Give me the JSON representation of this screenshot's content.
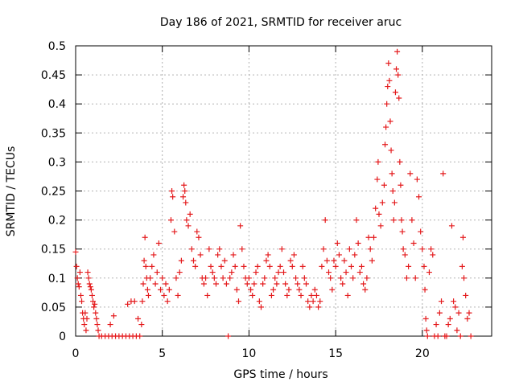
{
  "chart_data": {
    "type": "scatter",
    "title": "Day 186 of 2021, SRMTID for receiver aruc",
    "xlabel": "GPS time / hours",
    "ylabel": "SRMTID / TECUs",
    "xlim": [
      0,
      24
    ],
    "ylim": [
      0,
      0.5
    ],
    "x_ticks": [
      0,
      5,
      10,
      15,
      20
    ],
    "x_tick_labels": [
      "0",
      "5",
      "10",
      "15",
      "20"
    ],
    "y_ticks": [
      0,
      0.05,
      0.1,
      0.15,
      0.2,
      0.25,
      0.3,
      0.35,
      0.4,
      0.45,
      0.5
    ],
    "y_tick_labels": [
      "0",
      "0.05",
      "0.1",
      "0.15",
      "0.2",
      "0.25",
      "0.3",
      "0.35",
      "0.4",
      "0.45",
      "0.5"
    ],
    "grid": true,
    "marker": "+",
    "series": [
      {
        "name": "SRMTID",
        "color": "#e41a1c",
        "points": [
          [
            0.0,
            0.145
          ],
          [
            0.05,
            0.12
          ],
          [
            0.1,
            0.1
          ],
          [
            0.15,
            0.09
          ],
          [
            0.2,
            0.085
          ],
          [
            0.25,
            0.11
          ],
          [
            0.3,
            0.07
          ],
          [
            0.35,
            0.06
          ],
          [
            0.4,
            0.04
          ],
          [
            0.45,
            0.03
          ],
          [
            0.5,
            0.02
          ],
          [
            0.55,
            0.04
          ],
          [
            0.6,
            0.01
          ],
          [
            0.65,
            0.03
          ],
          [
            0.7,
            0.11
          ],
          [
            0.75,
            0.1
          ],
          [
            0.8,
            0.09
          ],
          [
            0.85,
            0.085
          ],
          [
            0.9,
            0.08
          ],
          [
            0.95,
            0.07
          ],
          [
            1.0,
            0.06
          ],
          [
            1.05,
            0.05
          ],
          [
            1.1,
            0.055
          ],
          [
            1.15,
            0.04
          ],
          [
            1.2,
            0.03
          ],
          [
            1.25,
            0.02
          ],
          [
            1.3,
            0.01
          ],
          [
            1.35,
            0.0
          ],
          [
            1.5,
            0.0
          ],
          [
            1.7,
            0.0
          ],
          [
            1.9,
            0.0
          ],
          [
            2.1,
            0.0
          ],
          [
            2.3,
            0.0
          ],
          [
            2.5,
            0.0
          ],
          [
            2.7,
            0.0
          ],
          [
            2.9,
            0.0
          ],
          [
            3.1,
            0.0
          ],
          [
            3.3,
            0.0
          ],
          [
            3.5,
            0.0
          ],
          [
            3.7,
            0.0
          ],
          [
            2.0,
            0.02
          ],
          [
            2.2,
            0.035
          ],
          [
            3.0,
            0.055
          ],
          [
            3.2,
            0.06
          ],
          [
            3.4,
            0.06
          ],
          [
            3.6,
            0.03
          ],
          [
            3.8,
            0.02
          ],
          [
            3.85,
            0.06
          ],
          [
            3.9,
            0.09
          ],
          [
            3.95,
            0.13
          ],
          [
            4.0,
            0.17
          ],
          [
            4.05,
            0.12
          ],
          [
            4.1,
            0.1
          ],
          [
            4.15,
            0.08
          ],
          [
            4.2,
            0.07
          ],
          [
            4.3,
            0.1
          ],
          [
            4.4,
            0.12
          ],
          [
            4.5,
            0.14
          ],
          [
            4.6,
            0.09
          ],
          [
            4.7,
            0.11
          ],
          [
            4.8,
            0.16
          ],
          [
            4.9,
            0.08
          ],
          [
            5.0,
            0.1
          ],
          [
            5.1,
            0.07
          ],
          [
            5.2,
            0.09
          ],
          [
            5.3,
            0.06
          ],
          [
            5.4,
            0.08
          ],
          [
            5.5,
            0.2
          ],
          [
            5.55,
            0.25
          ],
          [
            5.6,
            0.24
          ],
          [
            5.7,
            0.18
          ],
          [
            5.8,
            0.1
          ],
          [
            5.9,
            0.07
          ],
          [
            6.0,
            0.11
          ],
          [
            6.1,
            0.13
          ],
          [
            6.2,
            0.24
          ],
          [
            6.25,
            0.26
          ],
          [
            6.3,
            0.25
          ],
          [
            6.35,
            0.23
          ],
          [
            6.4,
            0.2
          ],
          [
            6.5,
            0.19
          ],
          [
            6.6,
            0.21
          ],
          [
            6.7,
            0.15
          ],
          [
            6.8,
            0.13
          ],
          [
            6.9,
            0.12
          ],
          [
            7.0,
            0.18
          ],
          [
            7.1,
            0.17
          ],
          [
            7.2,
            0.14
          ],
          [
            7.3,
            0.1
          ],
          [
            7.4,
            0.09
          ],
          [
            7.5,
            0.1
          ],
          [
            7.6,
            0.07
          ],
          [
            7.7,
            0.15
          ],
          [
            7.8,
            0.12
          ],
          [
            7.9,
            0.11
          ],
          [
            8.0,
            0.1
          ],
          [
            8.1,
            0.09
          ],
          [
            8.2,
            0.14
          ],
          [
            8.3,
            0.15
          ],
          [
            8.4,
            0.12
          ],
          [
            8.5,
            0.1
          ],
          [
            8.6,
            0.13
          ],
          [
            8.7,
            0.09
          ],
          [
            8.8,
            0.0
          ],
          [
            8.9,
            0.1
          ],
          [
            9.0,
            0.11
          ],
          [
            9.1,
            0.14
          ],
          [
            9.2,
            0.12
          ],
          [
            9.3,
            0.08
          ],
          [
            9.4,
            0.06
          ],
          [
            9.5,
            0.19
          ],
          [
            9.6,
            0.15
          ],
          [
            9.7,
            0.12
          ],
          [
            9.8,
            0.1
          ],
          [
            9.9,
            0.09
          ],
          [
            10.0,
            0.1
          ],
          [
            10.1,
            0.08
          ],
          [
            10.2,
            0.07
          ],
          [
            10.3,
            0.09
          ],
          [
            10.4,
            0.11
          ],
          [
            10.5,
            0.12
          ],
          [
            10.6,
            0.06
          ],
          [
            10.7,
            0.05
          ],
          [
            10.8,
            0.09
          ],
          [
            10.9,
            0.1
          ],
          [
            11.0,
            0.13
          ],
          [
            11.1,
            0.14
          ],
          [
            11.2,
            0.12
          ],
          [
            11.3,
            0.07
          ],
          [
            11.4,
            0.08
          ],
          [
            11.5,
            0.1
          ],
          [
            11.6,
            0.09
          ],
          [
            11.7,
            0.11
          ],
          [
            11.8,
            0.12
          ],
          [
            11.9,
            0.15
          ],
          [
            12.0,
            0.11
          ],
          [
            12.1,
            0.09
          ],
          [
            12.2,
            0.07
          ],
          [
            12.3,
            0.08
          ],
          [
            12.4,
            0.13
          ],
          [
            12.5,
            0.12
          ],
          [
            12.6,
            0.14
          ],
          [
            12.7,
            0.1
          ],
          [
            12.8,
            0.09
          ],
          [
            12.9,
            0.08
          ],
          [
            13.0,
            0.07
          ],
          [
            13.1,
            0.12
          ],
          [
            13.2,
            0.1
          ],
          [
            13.3,
            0.09
          ],
          [
            13.4,
            0.06
          ],
          [
            13.5,
            0.05
          ],
          [
            13.6,
            0.07
          ],
          [
            13.7,
            0.06
          ],
          [
            13.8,
            0.08
          ],
          [
            13.9,
            0.07
          ],
          [
            14.0,
            0.05
          ],
          [
            14.1,
            0.06
          ],
          [
            14.2,
            0.12
          ],
          [
            14.3,
            0.15
          ],
          [
            14.4,
            0.2
          ],
          [
            14.5,
            0.13
          ],
          [
            14.6,
            0.11
          ],
          [
            14.7,
            0.1
          ],
          [
            14.8,
            0.08
          ],
          [
            14.9,
            0.13
          ],
          [
            15.0,
            0.12
          ],
          [
            15.1,
            0.16
          ],
          [
            15.2,
            0.14
          ],
          [
            15.3,
            0.1
          ],
          [
            15.4,
            0.09
          ],
          [
            15.5,
            0.13
          ],
          [
            15.6,
            0.11
          ],
          [
            15.7,
            0.07
          ],
          [
            15.8,
            0.15
          ],
          [
            15.9,
            0.12
          ],
          [
            16.0,
            0.1
          ],
          [
            16.1,
            0.14
          ],
          [
            16.2,
            0.2
          ],
          [
            16.3,
            0.16
          ],
          [
            16.4,
            0.11
          ],
          [
            16.5,
            0.12
          ],
          [
            16.6,
            0.09
          ],
          [
            16.7,
            0.08
          ],
          [
            16.8,
            0.1
          ],
          [
            16.9,
            0.17
          ],
          [
            17.0,
            0.15
          ],
          [
            17.1,
            0.13
          ],
          [
            17.2,
            0.17
          ],
          [
            17.3,
            0.22
          ],
          [
            17.4,
            0.27
          ],
          [
            17.45,
            0.3
          ],
          [
            17.5,
            0.21
          ],
          [
            17.6,
            0.19
          ],
          [
            17.7,
            0.23
          ],
          [
            17.8,
            0.26
          ],
          [
            17.85,
            0.33
          ],
          [
            17.9,
            0.36
          ],
          [
            17.95,
            0.4
          ],
          [
            18.0,
            0.43
          ],
          [
            18.05,
            0.47
          ],
          [
            18.1,
            0.44
          ],
          [
            18.15,
            0.37
          ],
          [
            18.2,
            0.32
          ],
          [
            18.25,
            0.28
          ],
          [
            18.3,
            0.25
          ],
          [
            18.35,
            0.2
          ],
          [
            18.4,
            0.23
          ],
          [
            18.45,
            0.42
          ],
          [
            18.5,
            0.46
          ],
          [
            18.55,
            0.49
          ],
          [
            18.6,
            0.45
          ],
          [
            18.65,
            0.41
          ],
          [
            18.7,
            0.3
          ],
          [
            18.75,
            0.26
          ],
          [
            18.8,
            0.2
          ],
          [
            18.85,
            0.18
          ],
          [
            18.9,
            0.15
          ],
          [
            19.0,
            0.14
          ],
          [
            19.1,
            0.1
          ],
          [
            19.2,
            0.12
          ],
          [
            19.3,
            0.28
          ],
          [
            19.4,
            0.2
          ],
          [
            19.5,
            0.16
          ],
          [
            19.6,
            0.1
          ],
          [
            19.7,
            0.27
          ],
          [
            19.8,
            0.24
          ],
          [
            19.9,
            0.18
          ],
          [
            20.0,
            0.15
          ],
          [
            20.1,
            0.12
          ],
          [
            20.15,
            0.08
          ],
          [
            20.2,
            0.03
          ],
          [
            20.25,
            0.01
          ],
          [
            20.3,
            0.0
          ],
          [
            20.4,
            0.11
          ],
          [
            20.5,
            0.15
          ],
          [
            20.6,
            0.14
          ],
          [
            20.7,
            0.0
          ],
          [
            20.8,
            0.02
          ],
          [
            20.9,
            0.0
          ],
          [
            21.0,
            0.04
          ],
          [
            21.1,
            0.06
          ],
          [
            21.2,
            0.28
          ],
          [
            21.3,
            0.0
          ],
          [
            21.4,
            0.0
          ],
          [
            21.5,
            0.02
          ],
          [
            21.6,
            0.03
          ],
          [
            21.7,
            0.19
          ],
          [
            21.8,
            0.06
          ],
          [
            21.9,
            0.05
          ],
          [
            22.0,
            0.01
          ],
          [
            22.1,
            0.04
          ],
          [
            22.2,
            0.0
          ],
          [
            22.3,
            0.12
          ],
          [
            22.35,
            0.17
          ],
          [
            22.4,
            0.1
          ],
          [
            22.5,
            0.07
          ],
          [
            22.6,
            0.03
          ],
          [
            22.7,
            0.04
          ],
          [
            22.8,
            0.0
          ]
        ]
      }
    ]
  }
}
